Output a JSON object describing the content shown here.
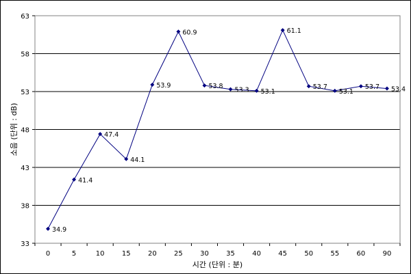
{
  "chart_data": {
    "type": "line",
    "xlabel": "시간 (단위 : 분)",
    "ylabel": "소음 (단위 : dB)",
    "categories": [
      "0",
      "5",
      "10",
      "15",
      "20",
      "25",
      "30",
      "35",
      "40",
      "45",
      "50",
      "55",
      "60",
      "90"
    ],
    "series": [
      {
        "values": [
          34.9,
          41.4,
          47.4,
          44.1,
          53.9,
          60.9,
          53.8,
          53.3,
          53.1,
          61.1,
          53.7,
          53.1,
          53.7,
          53.4
        ],
        "data_labels": [
          "34.9",
          "41.4",
          "47.4",
          "44.1",
          "53.9",
          "60.9",
          "53.8",
          "53.3",
          "53.1",
          "61.1",
          "53.7",
          "53.1",
          "53.7",
          "53.4"
        ],
        "color": "#000080"
      }
    ],
    "ylim": [
      33,
      63
    ],
    "yticks": [
      "33",
      "38",
      "43",
      "48",
      "53",
      "58",
      "63"
    ],
    "grid": true,
    "legend": "none"
  }
}
